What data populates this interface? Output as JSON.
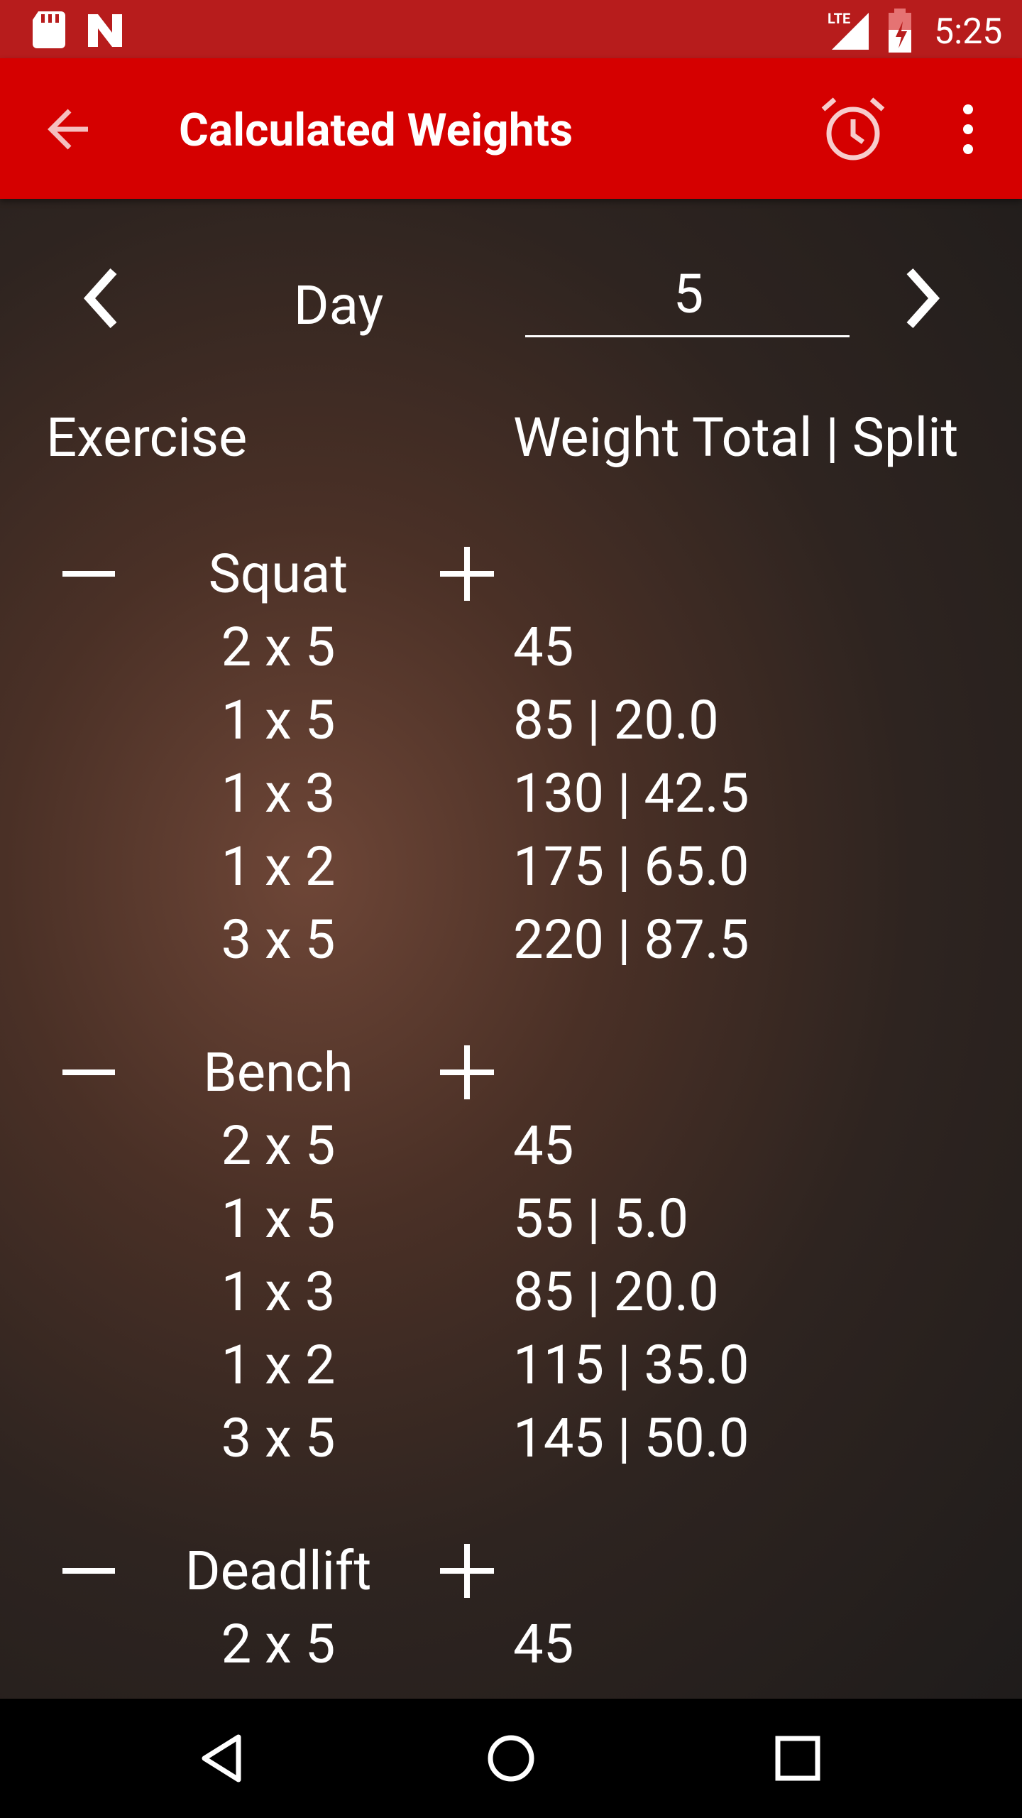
{
  "status_bar": {
    "network": "LTE",
    "time": "5:25"
  },
  "toolbar": {
    "title": "Calculated Weights"
  },
  "day_selector": {
    "label": "Day",
    "value": "5"
  },
  "table": {
    "headers": [
      "Exercise",
      "Weight Total | Split"
    ],
    "exercises": [
      {
        "name": "Squat",
        "sets": [
          {
            "reps": "2 x 5",
            "weight": "45"
          },
          {
            "reps": "1 x 5",
            "weight": "85 | 20.0"
          },
          {
            "reps": "1 x 3",
            "weight": "130 | 42.5"
          },
          {
            "reps": "1 x 2",
            "weight": "175 | 65.0"
          },
          {
            "reps": "3 x 5",
            "weight": "220 | 87.5"
          }
        ]
      },
      {
        "name": "Bench",
        "sets": [
          {
            "reps": "2 x 5",
            "weight": "45"
          },
          {
            "reps": "1 x 5",
            "weight": "55 | 5.0"
          },
          {
            "reps": "1 x 3",
            "weight": "85 | 20.0"
          },
          {
            "reps": "1 x 2",
            "weight": "115 | 35.0"
          },
          {
            "reps": "3 x 5",
            "weight": "145 | 50.0"
          }
        ]
      },
      {
        "name": "Deadlift",
        "sets": [
          {
            "reps": "2 x 5",
            "weight": "45"
          }
        ]
      }
    ]
  }
}
